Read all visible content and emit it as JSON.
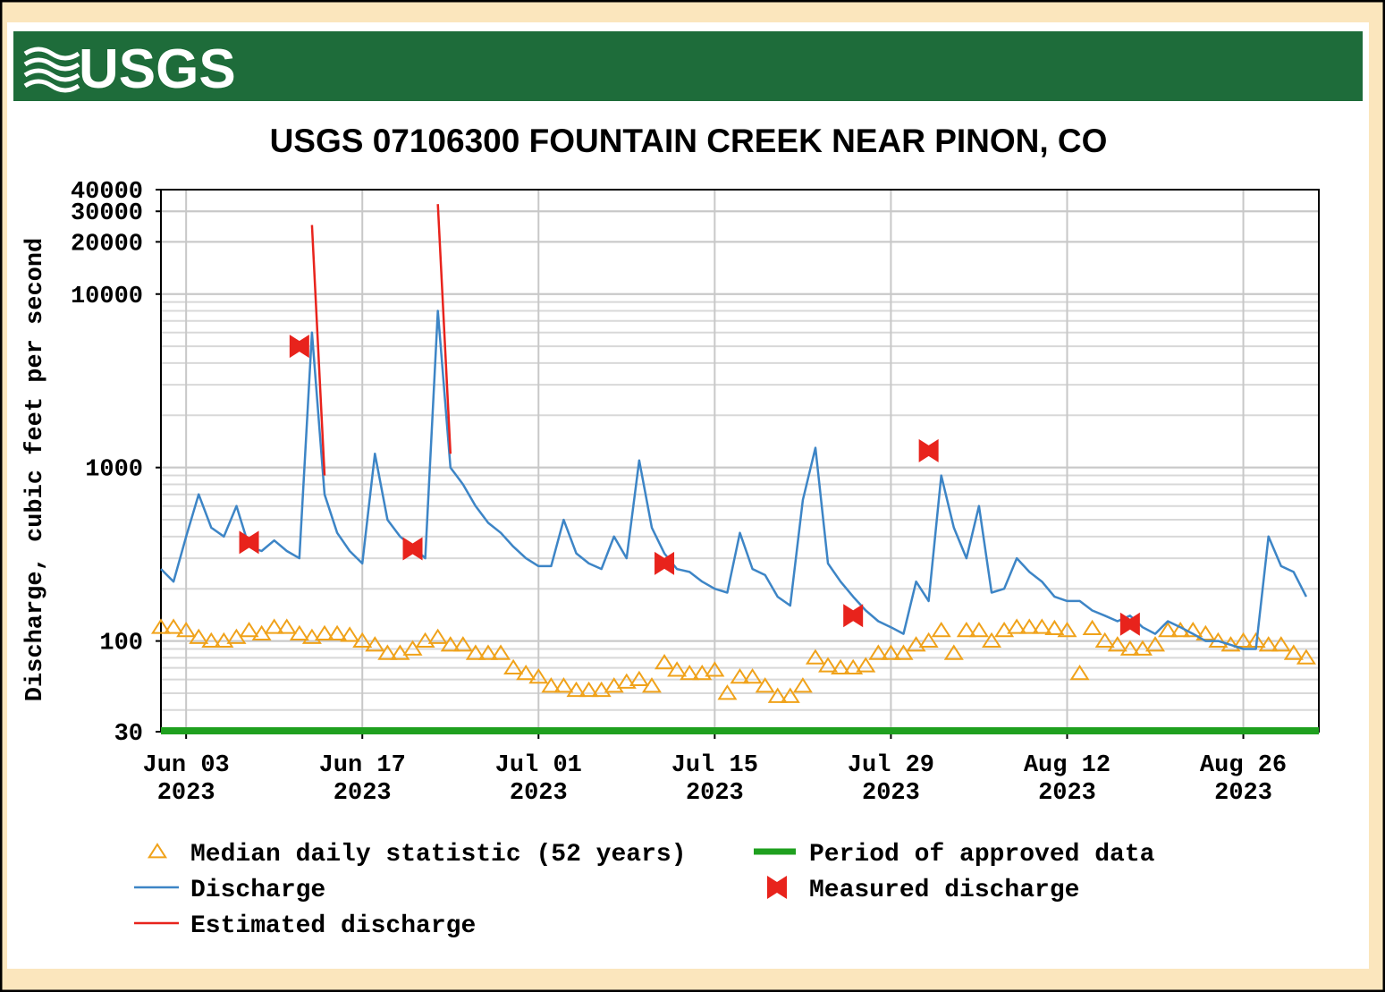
{
  "chart_data": {
    "type": "line",
    "logo": "USGS",
    "title": "USGS 07106300 FOUNTAIN CREEK NEAR PINON, CO",
    "y_label": "Discharge, cubic feet per second",
    "ylog": true,
    "grid": true,
    "xlim": [
      "2023-06-01",
      "2023-09-01"
    ],
    "ylim": [
      30,
      40000
    ],
    "yticks": [
      30,
      100,
      1000,
      10000,
      20000,
      30000,
      40000
    ],
    "xticks": [
      {
        "value": "2023-06-03",
        "label": "Jun 03\n2023"
      },
      {
        "value": "2023-06-17",
        "label": "Jun 17\n2023"
      },
      {
        "value": "2023-07-01",
        "label": "Jul 01\n2023"
      },
      {
        "value": "2023-07-15",
        "label": "Jul 15\n2023"
      },
      {
        "value": "2023-07-29",
        "label": "Jul 29\n2023"
      },
      {
        "value": "2023-08-12",
        "label": "Aug 12\n2023"
      },
      {
        "value": "2023-08-26",
        "label": "Aug 26\n2023"
      }
    ],
    "x": [
      "2023-06-01",
      "2023-06-02",
      "2023-06-03",
      "2023-06-04",
      "2023-06-05",
      "2023-06-06",
      "2023-06-07",
      "2023-06-08",
      "2023-06-09",
      "2023-06-10",
      "2023-06-11",
      "2023-06-12",
      "2023-06-13",
      "2023-06-14",
      "2023-06-15",
      "2023-06-16",
      "2023-06-17",
      "2023-06-18",
      "2023-06-19",
      "2023-06-20",
      "2023-06-21",
      "2023-06-22",
      "2023-06-23",
      "2023-06-24",
      "2023-06-25",
      "2023-06-26",
      "2023-06-27",
      "2023-06-28",
      "2023-06-29",
      "2023-06-30",
      "2023-07-01",
      "2023-07-02",
      "2023-07-03",
      "2023-07-04",
      "2023-07-05",
      "2023-07-06",
      "2023-07-07",
      "2023-07-08",
      "2023-07-09",
      "2023-07-10",
      "2023-07-11",
      "2023-07-12",
      "2023-07-13",
      "2023-07-14",
      "2023-07-15",
      "2023-07-16",
      "2023-07-17",
      "2023-07-18",
      "2023-07-19",
      "2023-07-20",
      "2023-07-21",
      "2023-07-22",
      "2023-07-23",
      "2023-07-24",
      "2023-07-25",
      "2023-07-26",
      "2023-07-27",
      "2023-07-28",
      "2023-07-29",
      "2023-07-30",
      "2023-07-31",
      "2023-08-01",
      "2023-08-02",
      "2023-08-03",
      "2023-08-04",
      "2023-08-05",
      "2023-08-06",
      "2023-08-07",
      "2023-08-08",
      "2023-08-09",
      "2023-08-10",
      "2023-08-11",
      "2023-08-12",
      "2023-08-13",
      "2023-08-14",
      "2023-08-15",
      "2023-08-16",
      "2023-08-17",
      "2023-08-18",
      "2023-08-19",
      "2023-08-20",
      "2023-08-21",
      "2023-08-22",
      "2023-08-23",
      "2023-08-24",
      "2023-08-25",
      "2023-08-26",
      "2023-08-27",
      "2023-08-28",
      "2023-08-29",
      "2023-08-30",
      "2023-08-31"
    ],
    "series": [
      {
        "name": "Median daily statistic (52 years)",
        "color": "#f0a21a",
        "marker": "triangle",
        "values": [
          120,
          120,
          115,
          105,
          100,
          100,
          105,
          115,
          110,
          120,
          120,
          110,
          105,
          110,
          110,
          108,
          100,
          95,
          85,
          85,
          90,
          100,
          105,
          95,
          95,
          85,
          85,
          85,
          70,
          65,
          62,
          55,
          55,
          52,
          52,
          52,
          55,
          58,
          60,
          55,
          75,
          68,
          65,
          65,
          68,
          50,
          62,
          62,
          55,
          48,
          48,
          55,
          80,
          72,
          70,
          70,
          72,
          85,
          85,
          85,
          95,
          100,
          115,
          85,
          115,
          115,
          100,
          115,
          120,
          120,
          120,
          118,
          115,
          65,
          118,
          100,
          95,
          90,
          90,
          95,
          115,
          115,
          115,
          110,
          100,
          95,
          100,
          100,
          95,
          95,
          85,
          80
        ]
      },
      {
        "name": "Discharge",
        "color": "#3d85c6",
        "marker": "line",
        "values": [
          260,
          220,
          400,
          700,
          450,
          400,
          600,
          350,
          330,
          380,
          330,
          300,
          6000,
          700,
          420,
          330,
          280,
          1200,
          500,
          400,
          350,
          300,
          8000,
          1000,
          800,
          600,
          480,
          420,
          350,
          300,
          270,
          270,
          500,
          320,
          280,
          260,
          400,
          300,
          1100,
          450,
          320,
          260,
          250,
          220,
          200,
          190,
          420,
          260,
          240,
          180,
          160,
          650,
          1300,
          280,
          220,
          180,
          150,
          130,
          120,
          110,
          220,
          170,
          900,
          450,
          300,
          600,
          190,
          200,
          300,
          250,
          220,
          180,
          170,
          170,
          150,
          140,
          130,
          140,
          120,
          110,
          130,
          120,
          110,
          100,
          100,
          95,
          90,
          90,
          400,
          270,
          250,
          180
        ]
      },
      {
        "name": "Estimated discharge",
        "color": "#e8231c",
        "marker": "line",
        "x": [
          "2023-06-13",
          "2023-06-14",
          "2023-06-18",
          "2023-06-23",
          "2023-06-24"
        ],
        "values": [
          25000,
          900,
          null,
          33000,
          1200
        ]
      }
    ],
    "measured": {
      "name": "Measured discharge",
      "color": "#e8231c",
      "x": [
        "2023-06-08",
        "2023-06-12",
        "2023-06-21",
        "2023-07-11",
        "2023-07-26",
        "2023-08-01",
        "2023-08-17"
      ],
      "values": [
        370,
        5000,
        340,
        280,
        140,
        1250,
        125
      ]
    },
    "approved": {
      "name": "Period of approved data",
      "color": "#1fa01f",
      "x": [
        "2023-06-01",
        "2023-09-01"
      ]
    }
  }
}
